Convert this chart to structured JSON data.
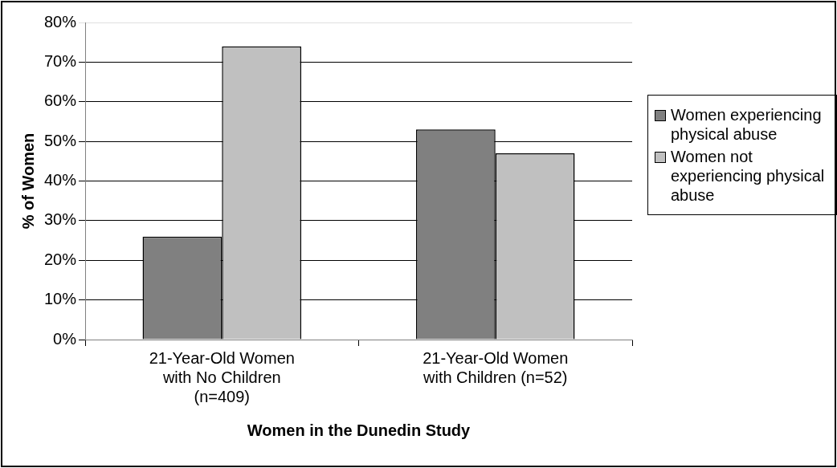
{
  "chart_data": {
    "type": "bar",
    "xlabel": "Women in the Dunedin Study",
    "ylabel": "% of Women",
    "categories": [
      "21-Year-Old Women with No Children (n=409)",
      "21-Year-Old Women with Children (n=52)"
    ],
    "series": [
      {
        "name": "Women experiencing physical abuse",
        "color": "#808080",
        "values": [
          26,
          53
        ]
      },
      {
        "name": "Women not experiencing physical abuse",
        "color": "#c0c0c0",
        "values": [
          74,
          47
        ]
      }
    ],
    "ylim": [
      0,
      80
    ],
    "yticks": [
      {
        "value": 0,
        "label": "0%"
      },
      {
        "value": 10,
        "label": "10%"
      },
      {
        "value": 20,
        "label": "20%"
      },
      {
        "value": 30,
        "label": "30%"
      },
      {
        "value": 40,
        "label": "40%"
      },
      {
        "value": 50,
        "label": "50%"
      },
      {
        "value": 60,
        "label": "60%"
      },
      {
        "value": 70,
        "label": "70%"
      },
      {
        "value": 80,
        "label": "80%"
      }
    ],
    "grid": "y",
    "legend": "right"
  }
}
